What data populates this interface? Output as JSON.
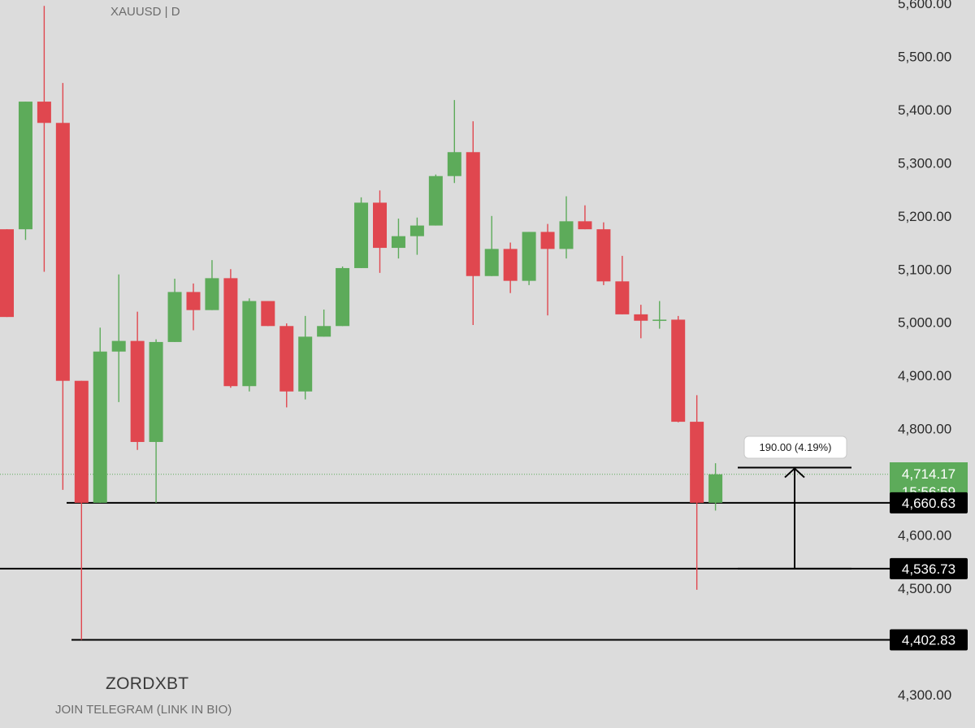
{
  "chart": {
    "symbol_label": "XAUUSD | D",
    "watermark_name": "ZORDXBT",
    "watermark_sub": "JOIN TELEGRAM (LINK IN BIO)"
  },
  "colors": {
    "background": "#dcdcdc",
    "up": "#5dab5a",
    "down": "#e0474f",
    "level_line": "#000000",
    "last_price_tag": "#5dab5a"
  },
  "chart_data": {
    "type": "candlestick",
    "title": "XAUUSD | D",
    "ylim": [
      4300,
      5600
    ],
    "y_ticks": [
      "4,300.00",
      "4,500.00",
      "4,600.00",
      "4,700.00",
      "4,800.00",
      "4,900.00",
      "5,000.00",
      "5,100.00",
      "5,200.00",
      "5,300.00",
      "5,400.00",
      "5,500.00",
      "5,600.00"
    ],
    "candles": [
      {
        "o": 5175,
        "h": 5175,
        "l": 5010,
        "c": 5010
      },
      {
        "o": 5175,
        "h": 5415,
        "l": 5155,
        "c": 5415
      },
      {
        "o": 5415,
        "h": 5595,
        "l": 5095,
        "c": 5375
      },
      {
        "o": 5375,
        "h": 5450,
        "l": 4685,
        "c": 4890
      },
      {
        "o": 4890,
        "h": 4890,
        "l": 4402.83,
        "c": 4660.63
      },
      {
        "o": 4660.63,
        "h": 4990,
        "l": 4660.63,
        "c": 4945
      },
      {
        "o": 4945,
        "h": 5090,
        "l": 4850,
        "c": 4965
      },
      {
        "o": 4965,
        "h": 5020,
        "l": 4760,
        "c": 4775
      },
      {
        "o": 4775,
        "h": 4968,
        "l": 4660.63,
        "c": 4963
      },
      {
        "o": 4963,
        "h": 5082,
        "l": 4963,
        "c": 5057
      },
      {
        "o": 5057,
        "h": 5073,
        "l": 4985,
        "c": 5023
      },
      {
        "o": 5023,
        "h": 5117,
        "l": 5023,
        "c": 5083
      },
      {
        "o": 5083,
        "h": 5100,
        "l": 4877,
        "c": 4880
      },
      {
        "o": 4880,
        "h": 5045,
        "l": 4870,
        "c": 5040
      },
      {
        "o": 5040,
        "h": 5040,
        "l": 4993,
        "c": 4993
      },
      {
        "o": 4993,
        "h": 4998,
        "l": 4840,
        "c": 4870
      },
      {
        "o": 4870,
        "h": 5012,
        "l": 4855,
        "c": 4973
      },
      {
        "o": 4973,
        "h": 5024,
        "l": 4973,
        "c": 4993
      },
      {
        "o": 4993,
        "h": 5105,
        "l": 4993,
        "c": 5102
      },
      {
        "o": 5102,
        "h": 5235,
        "l": 5102,
        "c": 5225
      },
      {
        "o": 5225,
        "h": 5248,
        "l": 5093,
        "c": 5140
      },
      {
        "o": 5140,
        "h": 5195,
        "l": 5120,
        "c": 5162
      },
      {
        "o": 5162,
        "h": 5197,
        "l": 5127,
        "c": 5182
      },
      {
        "o": 5182,
        "h": 5278,
        "l": 5182,
        "c": 5275
      },
      {
        "o": 5275,
        "h": 5418,
        "l": 5262,
        "c": 5320
      },
      {
        "o": 5320,
        "h": 5378,
        "l": 4995,
        "c": 5087
      },
      {
        "o": 5087,
        "h": 5200,
        "l": 5087,
        "c": 5138
      },
      {
        "o": 5138,
        "h": 5150,
        "l": 5055,
        "c": 5078
      },
      {
        "o": 5078,
        "h": 5170,
        "l": 5070,
        "c": 5170
      },
      {
        "o": 5170,
        "h": 5185,
        "l": 5013,
        "c": 5138
      },
      {
        "o": 5138,
        "h": 5237,
        "l": 5120,
        "c": 5190
      },
      {
        "o": 5190,
        "h": 5220,
        "l": 5175,
        "c": 5175
      },
      {
        "o": 5175,
        "h": 5188,
        "l": 5070,
        "c": 5077
      },
      {
        "o": 5077,
        "h": 5125,
        "l": 5015,
        "c": 5015
      },
      {
        "o": 5015,
        "h": 5033,
        "l": 4970,
        "c": 5003
      },
      {
        "o": 5003,
        "h": 5040,
        "l": 4988,
        "c": 5005
      },
      {
        "o": 5005,
        "h": 5012,
        "l": 4812,
        "c": 4813
      },
      {
        "o": 4813,
        "h": 4863,
        "l": 4497,
        "c": 4660.63
      },
      {
        "o": 4660.63,
        "h": 4735,
        "l": 4646,
        "c": 4714.17
      }
    ],
    "levels": [
      {
        "price": 4660.63,
        "label": "4,660.63"
      },
      {
        "price": 4536.73,
        "label": "4,536.73"
      },
      {
        "price": 4402.83,
        "label": "4,402.83"
      }
    ],
    "last_price": {
      "value": 4714.17,
      "label": "4,714.17",
      "countdown": "15:56:59"
    },
    "measure": {
      "from": 4536.73,
      "to": 4726.73,
      "label": "190.00 (4.19%)"
    }
  }
}
